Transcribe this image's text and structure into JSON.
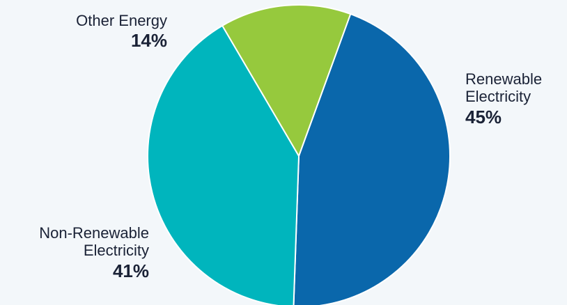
{
  "colors": {
    "background": "#f3f7fa",
    "slice_stroke": "#ffffff",
    "label_text": "#1a2236"
  },
  "chart_data": {
    "type": "pie",
    "title": "",
    "slices": [
      {
        "label_lines": [
          "Renewable",
          "Electricity"
        ],
        "value": 45,
        "value_label": "45%",
        "color": "#0a67ab"
      },
      {
        "label_lines": [
          "Non-Renewable",
          "Electricity"
        ],
        "value": 41,
        "value_label": "41%",
        "color": "#00b5bd"
      },
      {
        "label_lines": [
          "Other Energy"
        ],
        "value": 14,
        "value_label": "14%",
        "color": "#96c93d"
      }
    ],
    "start_angle_deg": 20,
    "direction": "clockwise"
  }
}
